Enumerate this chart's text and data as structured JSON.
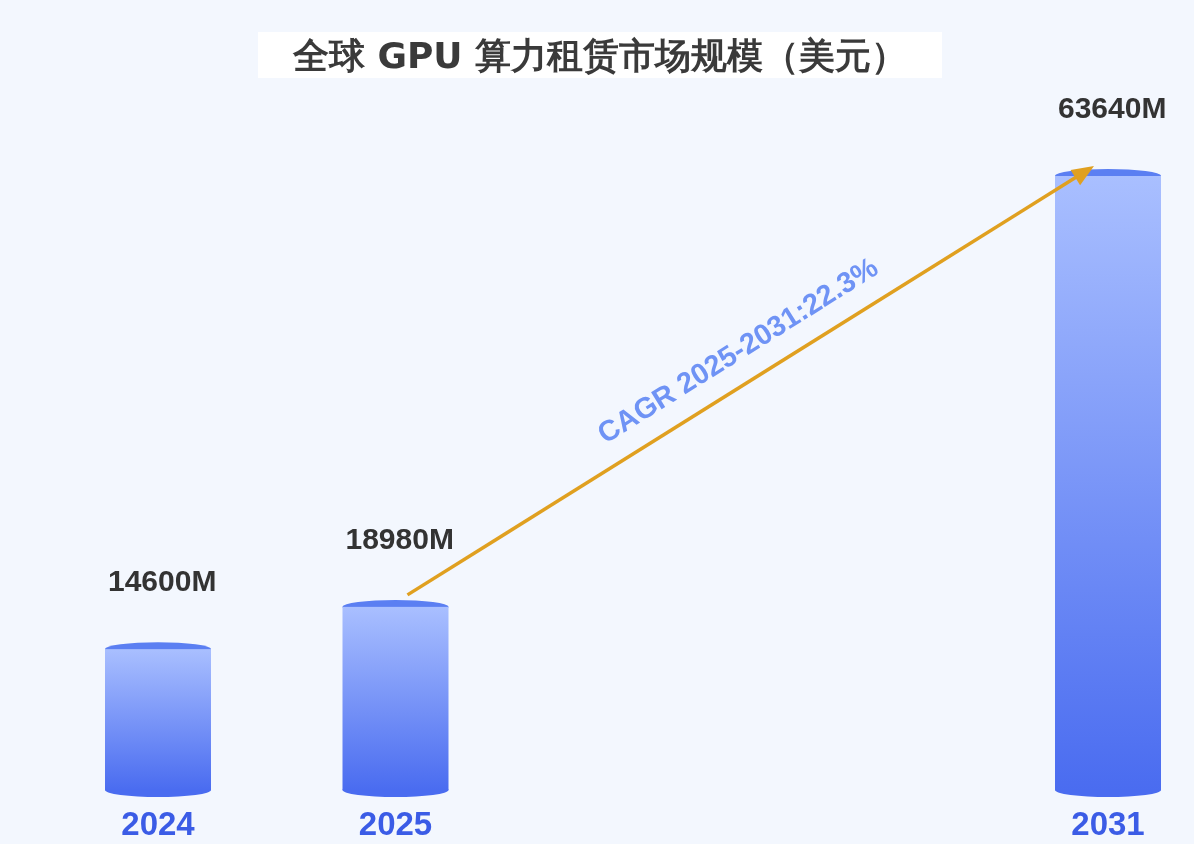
{
  "chart_data": {
    "type": "bar",
    "title": "全球 GPU 算力租赁市场规模（美元）",
    "categories": [
      "2024",
      "2025",
      null,
      null,
      "2031"
    ],
    "values": [
      14600,
      18980,
      null,
      null,
      63640
    ],
    "value_labels": [
      "14600M",
      "18980M",
      null,
      null,
      "63640M"
    ],
    "color": "#5b7ff2",
    "annotations": [
      "CAGR 2025-2031:22.3%"
    ]
  }
}
